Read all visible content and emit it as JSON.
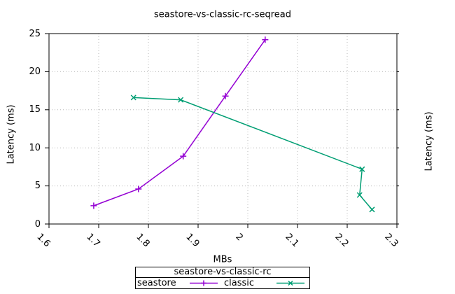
{
  "title": "seastore-vs-classic-rc-seqread",
  "axes": {
    "x_label": "MBs",
    "y_left_label": "Latency (ms)",
    "y_right_label": "Latency (ms)",
    "x_tick_labels": [
      "1.6",
      "1.7",
      "1.8",
      "1.9",
      "2",
      "2.1",
      "2.2",
      "2.3"
    ],
    "y_tick_labels": [
      "0",
      "5",
      "10",
      "15",
      "20",
      "25"
    ]
  },
  "legend": {
    "title": "seastore-vs-classic-rc",
    "entries": [
      {
        "label": "seastore",
        "marker": "plus",
        "color": "#9400d3"
      },
      {
        "label": "classic",
        "marker": "cross",
        "color": "#009e73"
      }
    ]
  },
  "colors": {
    "background": "#ffffff",
    "axis": "#000000",
    "grid": "#b8b8b8",
    "text": "#000000",
    "seastore": "#9400d3",
    "classic": "#009e73"
  },
  "chart_data": {
    "type": "line",
    "title": "seastore-vs-classic-rc-seqread",
    "xlabel": "MBs",
    "ylabel": "Latency (ms)",
    "y2label": "Latency (ms)",
    "xlim": [
      1.6,
      2.3
    ],
    "ylim": [
      0,
      25
    ],
    "x_ticks": [
      1.6,
      1.7,
      1.8,
      1.9,
      2.0,
      2.1,
      2.2,
      2.3
    ],
    "y_ticks": [
      0,
      5,
      10,
      15,
      20,
      25
    ],
    "grid": "dotted",
    "legend_position": "below-plot-boxed",
    "series": [
      {
        "name": "seastore",
        "color": "#9400d3",
        "marker": "plus",
        "points": [
          [
            1.69,
            2.4
          ],
          [
            1.78,
            4.6
          ],
          [
            1.87,
            8.9
          ],
          [
            1.955,
            16.8
          ],
          [
            2.035,
            24.2
          ]
        ]
      },
      {
        "name": "classic",
        "color": "#009e73",
        "marker": "cross",
        "points": [
          [
            1.77,
            16.6
          ],
          [
            1.865,
            16.3
          ],
          [
            2.23,
            7.2
          ],
          [
            2.225,
            3.8
          ],
          [
            2.25,
            1.9
          ]
        ]
      }
    ]
  }
}
